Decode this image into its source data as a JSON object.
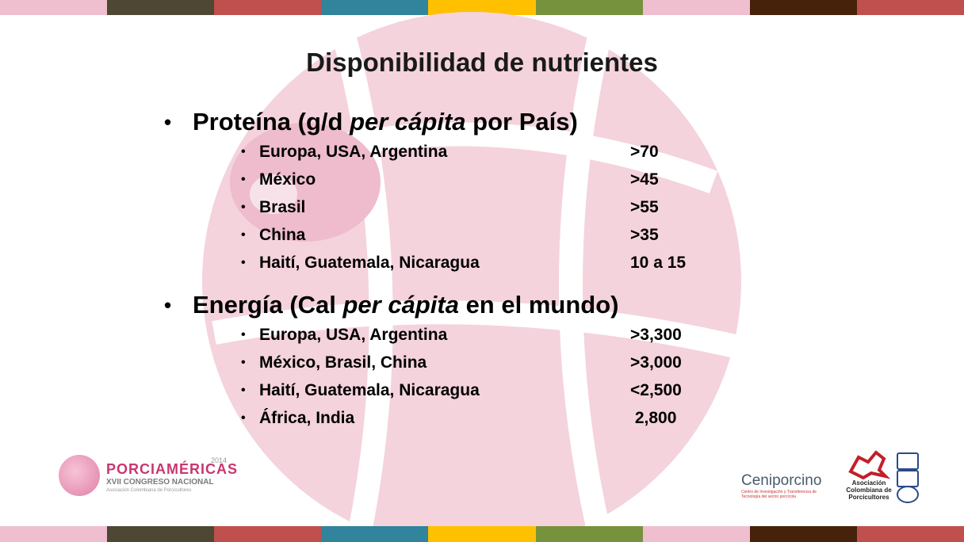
{
  "colors": {
    "stripe": [
      "#efbfcf",
      "#4d4733",
      "#c0504d",
      "#31849b",
      "#ffc000",
      "#76923c",
      "#efbfcf",
      "#46220a",
      "#c0504d"
    ]
  },
  "slide": {
    "title": "Disponibilidad de nutrientes",
    "sections": [
      {
        "heading_pre": "Proteína (g/d ",
        "heading_em": "per cápita",
        "heading_post": " por País)",
        "rows": [
          {
            "label": "Europa, USA, Argentina",
            "value": ">70"
          },
          {
            "label": "México",
            "value": ">45"
          },
          {
            "label": "Brasil",
            "value": ">55"
          },
          {
            "label": "China",
            "value": ">35"
          },
          {
            "label": "Haití, Guatemala, Nicaragua",
            "value": "10 a 15"
          }
        ]
      },
      {
        "heading_pre": "Energía (Cal ",
        "heading_em": "per cápita",
        "heading_post": " en el mundo)",
        "rows": [
          {
            "label": "Europa, USA, Argentina",
            "value": ">3,300"
          },
          {
            "label": "México, Brasil, China",
            "value": ">3,000"
          },
          {
            "label": "Haití, Guatemala, Nicaragua",
            "value": "<2,500"
          },
          {
            "label": "África, India",
            "value": " 2,800"
          }
        ]
      }
    ]
  },
  "logos": {
    "left_name": "PORCIAMÉRICAS",
    "left_sub": "XVII CONGRESO NACIONAL",
    "left_year": "2014",
    "left_assoc": "Asociación Colombiana de Porcicultores",
    "mid_name": "Ceniporcino",
    "mid_sub": "Centro de Investigación y Transferencia de Tecnología del sector porcícola",
    "right_name": "Asociación Colombiana de Porcicultores"
  }
}
